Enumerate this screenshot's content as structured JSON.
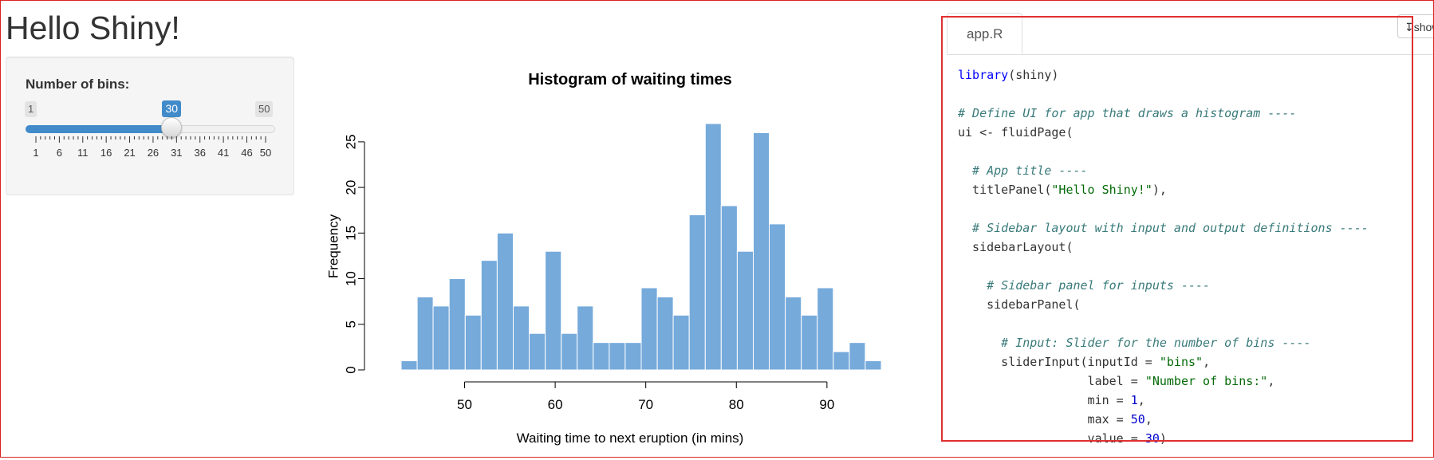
{
  "app": {
    "title": "Hello Shiny!"
  },
  "slider": {
    "label": "Number of bins:",
    "min": 1,
    "max": 50,
    "value": 30,
    "min_label": "1",
    "max_label": "50",
    "value_label": "30",
    "ticks": [
      "1",
      "6",
      "11",
      "16",
      "21",
      "26",
      "31",
      "36",
      "41",
      "46",
      "50"
    ],
    "accent": "#428bca"
  },
  "chart_data": {
    "type": "bar",
    "title": "Histogram of waiting times",
    "xlabel": "Waiting time to next eruption (in mins)",
    "ylabel": "Frequency",
    "x_ticks": [
      "50",
      "60",
      "70",
      "80",
      "90"
    ],
    "y_ticks": [
      "0",
      "5",
      "10",
      "15",
      "20",
      "25"
    ],
    "xlim": [
      43,
      96
    ],
    "ylim": [
      0,
      27
    ],
    "bin_edges": [
      43.0,
      44.77,
      46.53,
      48.3,
      50.07,
      51.83,
      53.6,
      55.37,
      57.13,
      58.9,
      60.67,
      62.43,
      64.2,
      65.97,
      67.73,
      69.5,
      71.27,
      73.03,
      74.8,
      76.57,
      78.33,
      80.1,
      81.87,
      83.63,
      85.4,
      87.17,
      88.93,
      90.7,
      92.47,
      94.23,
      96.0
    ],
    "values": [
      1,
      8,
      7,
      10,
      6,
      12,
      15,
      7,
      4,
      13,
      4,
      7,
      3,
      3,
      3,
      9,
      8,
      6,
      17,
      27,
      18,
      13,
      26,
      16,
      8,
      6,
      9,
      2,
      3,
      1
    ],
    "bar_color": "#75aadb",
    "grid": false
  },
  "code_panel": {
    "tab_label": "app.R",
    "show_button_label": "show",
    "lines": [
      [
        {
          "t": "library",
          "c": "fn"
        },
        {
          "t": "(shiny)",
          "c": ""
        }
      ],
      [],
      [
        {
          "t": "# Define UI for app that draws a histogram ----",
          "c": "comment"
        }
      ],
      [
        {
          "t": "ui <- fluidPage(",
          "c": ""
        }
      ],
      [],
      [
        {
          "t": "  # App title ----",
          "c": "comment"
        }
      ],
      [
        {
          "t": "  titlePanel(",
          "c": ""
        },
        {
          "t": "\"Hello Shiny!\"",
          "c": "str"
        },
        {
          "t": "),",
          "c": ""
        }
      ],
      [],
      [
        {
          "t": "  # Sidebar layout with input and output definitions ----",
          "c": "comment"
        }
      ],
      [
        {
          "t": "  sidebarLayout(",
          "c": ""
        }
      ],
      [],
      [
        {
          "t": "    # Sidebar panel for inputs ----",
          "c": "comment"
        }
      ],
      [
        {
          "t": "    sidebarPanel(",
          "c": ""
        }
      ],
      [],
      [
        {
          "t": "      # Input: Slider for the number of bins ----",
          "c": "comment"
        }
      ],
      [
        {
          "t": "      sliderInput(inputId = ",
          "c": ""
        },
        {
          "t": "\"bins\"",
          "c": "str"
        },
        {
          "t": ",",
          "c": ""
        }
      ],
      [
        {
          "t": "                  label = ",
          "c": ""
        },
        {
          "t": "\"Number of bins:\"",
          "c": "str"
        },
        {
          "t": ",",
          "c": ""
        }
      ],
      [
        {
          "t": "                  min = ",
          "c": ""
        },
        {
          "t": "1",
          "c": "num"
        },
        {
          "t": ",",
          "c": ""
        }
      ],
      [
        {
          "t": "                  max = ",
          "c": ""
        },
        {
          "t": "50",
          "c": "num"
        },
        {
          "t": ",",
          "c": ""
        }
      ],
      [
        {
          "t": "                  value = ",
          "c": ""
        },
        {
          "t": "30",
          "c": "num"
        },
        {
          "t": ")",
          "c": ""
        }
      ]
    ]
  }
}
